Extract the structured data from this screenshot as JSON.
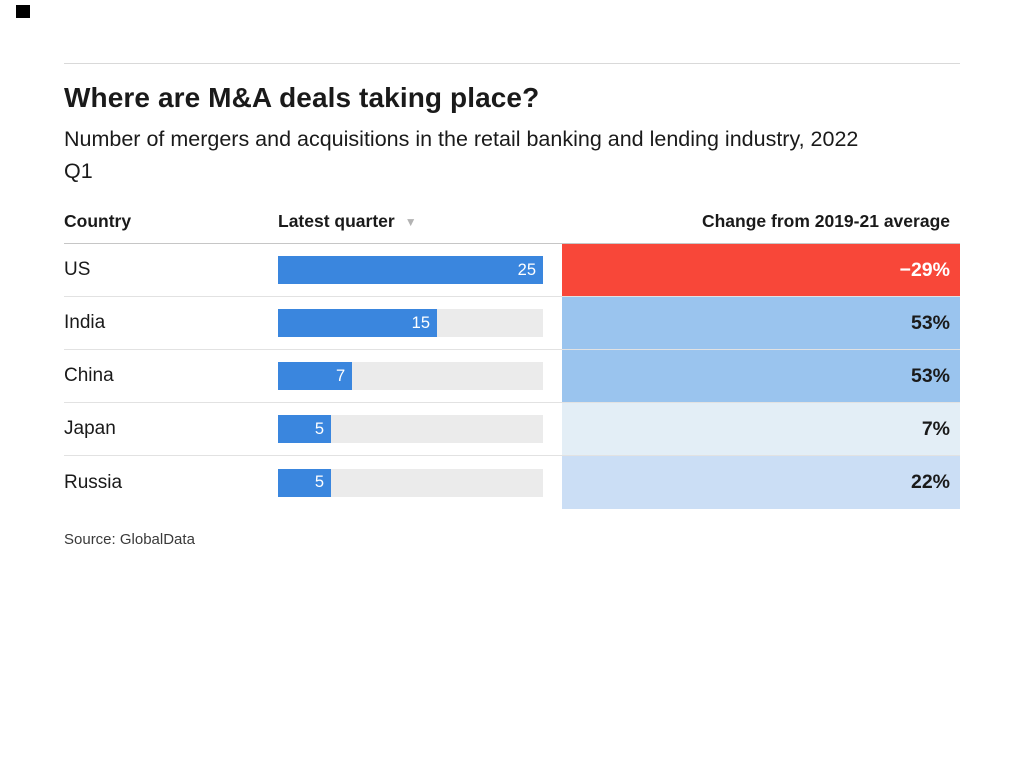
{
  "colors": {
    "bar_blue": "#3a86de",
    "bar_track": "#ebebeb",
    "negative_red": "#f84739",
    "change_blue_strong": "#9ac4ee",
    "change_blue_medium": "#cbdef5",
    "change_blue_light": "#e3eef6",
    "text_dark": "#1a1a1a",
    "bar_value_text": "#ffffff"
  },
  "logo": {
    "shape": "black-square"
  },
  "header": {
    "title": "Where are M&A deals taking place?",
    "subtitle": "Number of mergers and acquisitions in the retail banking and lending industry, 2022 Q1"
  },
  "table": {
    "columns": {
      "country": "Country",
      "latest_quarter": "Latest quarter",
      "change": "Change from 2019-21 average"
    },
    "sort_icon": "▼",
    "rows": [
      {
        "country": "US",
        "value": 25,
        "bar_pct": 100,
        "change_label": "−29%",
        "change_bg": "#f84739",
        "change_text": "#ffffff"
      },
      {
        "country": "India",
        "value": 15,
        "bar_pct": 60,
        "change_label": "53%",
        "change_bg": "#9ac4ee",
        "change_text": "#1a1a1a"
      },
      {
        "country": "China",
        "value": 7,
        "bar_pct": 28,
        "change_label": "53%",
        "change_bg": "#9ac4ee",
        "change_text": "#1a1a1a"
      },
      {
        "country": "Japan",
        "value": 5,
        "bar_pct": 20,
        "change_label": "7%",
        "change_bg": "#e3eef6",
        "change_text": "#1a1a1a"
      },
      {
        "country": "Russia",
        "value": 5,
        "bar_pct": 20,
        "change_label": "22%",
        "change_bg": "#cbdef5",
        "change_text": "#1a1a1a"
      }
    ]
  },
  "source": "Source: GlobalData",
  "chart_data": {
    "type": "table",
    "title": "Where are M&A deals taking place?",
    "subtitle": "Number of mergers and acquisitions in the retail banking and lending industry, 2022 Q1",
    "columns": [
      "Country",
      "Latest quarter",
      "Change from 2019-21 average"
    ],
    "categories": [
      "US",
      "India",
      "China",
      "Japan",
      "Russia"
    ],
    "series": [
      {
        "name": "Latest quarter",
        "type": "bar",
        "values": [
          25,
          15,
          7,
          5,
          5
        ],
        "bar_max": 25
      },
      {
        "name": "Change from 2019-21 average",
        "type": "cell-shading",
        "unit": "%",
        "values": [
          -29,
          53,
          53,
          7,
          22
        ]
      }
    ],
    "sorted_by": "Latest quarter",
    "sort_order": "descending",
    "source": "Source: GlobalData",
    "legend_position": "none",
    "grid": "row-dividers"
  }
}
